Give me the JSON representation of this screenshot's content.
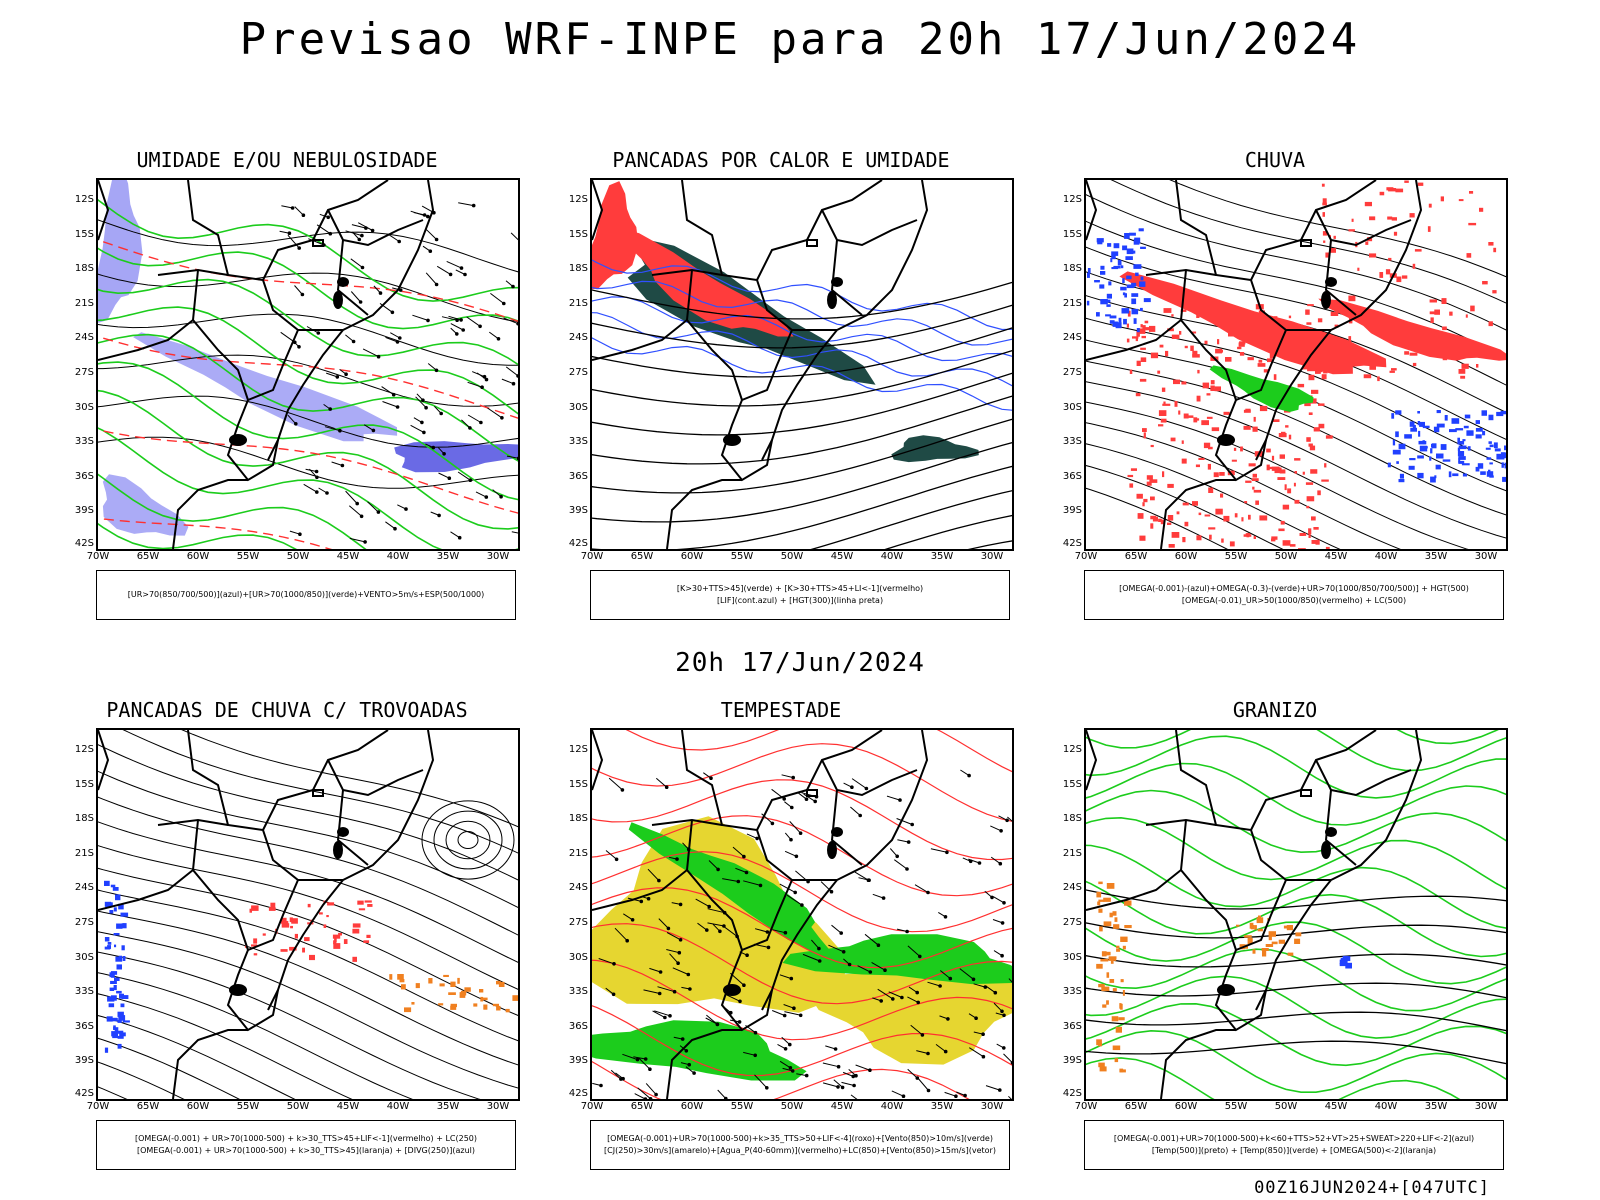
{
  "title": "Previsao WRF-INPE  para 20h 17/Jun/2024",
  "mid_title": "20h 17/Jun/2024",
  "footer": "00Z16JUN2024+[047UTC]",
  "lat_labels": [
    "12S",
    "15S",
    "18S",
    "21S",
    "24S",
    "27S",
    "30S",
    "33S",
    "36S",
    "39S",
    "42S"
  ],
  "lon_labels": [
    "70W",
    "65W",
    "60W",
    "55W",
    "50W",
    "45W",
    "40W",
    "35W",
    "30W"
  ],
  "panels": [
    {
      "title": "UMIDADE E/OU NEBULOSIDADE",
      "legend": [
        "[UR>70(850/700/500)](azul)+[UR>70(1000/850)](verde)+VENTO>5m/s+ESP(500/1000)"
      ],
      "colors": {
        "fill1": "#9c9cf4",
        "fill2": "#5050e0",
        "line": "#1ccc1c",
        "dash": "#ff3030"
      }
    },
    {
      "title": "PANCADAS POR CALOR E UMIDADE",
      "legend": [
        "[K>30+TTS>45](verde) + [K>30+TTS>45+LI<-1](vermelho)",
        "[LIF](cont.azul) + [HGT(300)](linha preta)"
      ],
      "colors": {
        "fill1": "#1f4a45",
        "fill2": "#ff3c3c",
        "line": "#3050ff"
      }
    },
    {
      "title": "CHUVA",
      "legend": [
        "[OMEGA(-0.001)-(azul)+OMEGA(-0.3)-(verde)+UR>70(1000/850/700/500)] + HGT(500)",
        "[OMEGA(-0.01)_UR>50(1000/850)(vermelho) + LC(500)"
      ],
      "colors": {
        "fill1": "#ff3c3c",
        "fill2": "#1ccc1c",
        "fill3": "#2040ff"
      }
    },
    {
      "title": "PANCADAS DE CHUVA C/ TROVOADAS",
      "legend": [
        "[OMEGA(-0.001) + UR>70(1000-500) + k>30_TTS>45+LIF<-1](vermelho) + LC(250)",
        "[OMEGA(-0.001) + UR>70(1000-500) + k>30_TTS>45](laranja) + [DIVG(250)](azul)"
      ],
      "colors": {
        "fill1": "#ff3c3c",
        "fill2": "#f08020",
        "fill3": "#2040ff"
      }
    },
    {
      "title": "TEMPESTADE",
      "legend": [
        "[OMEGA(-0.001)+UR>70(1000-500)+k>35_TTS>50+LIF<-4](roxo)+[Vento(850)>10m/s](verde)",
        "[CJ(250)>30m/s](amarelo)+[Agua_P(40-60mm)](vermelho)+LC(850)+[Vento(850)>15m/s](vetor)"
      ],
      "colors": {
        "fill1": "#e6d630",
        "fill2": "#1ccc1c",
        "line": "#ff3030"
      }
    },
    {
      "title": "GRANIZO",
      "legend": [
        "[OMEGA(-0.001)+UR>70(1000-500)+k<60+TTS>52+VT>25+SWEAT>220+LIF<-2](azul)",
        "[Temp(500)](preto) + [Temp(850)](verde) + [OMEGA(500)<-2](laranja)"
      ],
      "colors": {
        "fill1": "#f08020",
        "fill2": "#2040ff",
        "line": "#1ccc1c"
      }
    }
  ]
}
